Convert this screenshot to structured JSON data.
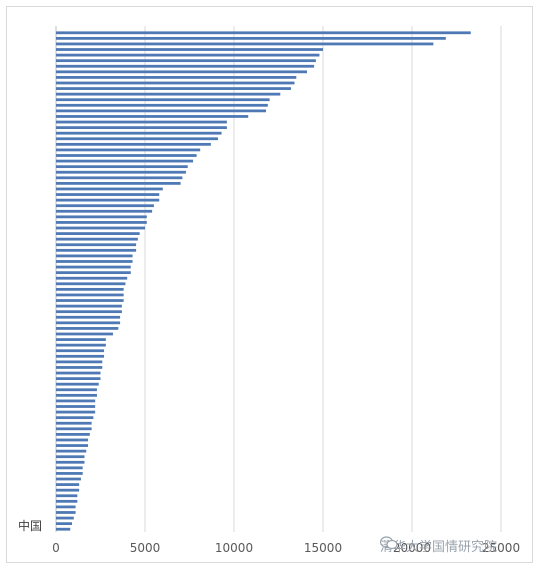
{
  "chart_data": {
    "type": "bar",
    "orientation": "horizontal",
    "title": "",
    "xlabel": "",
    "ylabel": "",
    "xlim": [
      0,
      25000
    ],
    "xticks": [
      0,
      5000,
      10000,
      15000,
      20000,
      25000
    ],
    "tick_labels": [
      "0",
      "5000",
      "10000",
      "15000",
      "20000",
      "25000"
    ],
    "grid": "vertical",
    "bar_color": "#4e79b5",
    "grid_color": "#d9d9d9",
    "labeled_category": "中国",
    "values": [
      23300,
      21900,
      21200,
      15000,
      14800,
      14600,
      14500,
      14100,
      13500,
      13400,
      13200,
      12600,
      12000,
      11900,
      11800,
      10800,
      9600,
      9600,
      9300,
      9100,
      8700,
      8100,
      7900,
      7700,
      7400,
      7300,
      7100,
      7000,
      6000,
      5800,
      5800,
      5500,
      5400,
      5100,
      5100,
      5000,
      4700,
      4600,
      4500,
      4500,
      4300,
      4300,
      4200,
      4200,
      4000,
      3900,
      3800,
      3800,
      3800,
      3700,
      3700,
      3600,
      3600,
      3500,
      3200,
      2800,
      2800,
      2700,
      2700,
      2600,
      2600,
      2500,
      2500,
      2400,
      2300,
      2300,
      2200,
      2200,
      2200,
      2100,
      2000,
      2000,
      1900,
      1800,
      1800,
      1700,
      1600,
      1600,
      1500,
      1500,
      1400,
      1300,
      1300,
      1200,
      1200,
      1100,
      1100,
      1000,
      900,
      800
    ]
  },
  "watermark": {
    "icon": "wechat-icon",
    "text": "清华大学国情研究院"
  }
}
